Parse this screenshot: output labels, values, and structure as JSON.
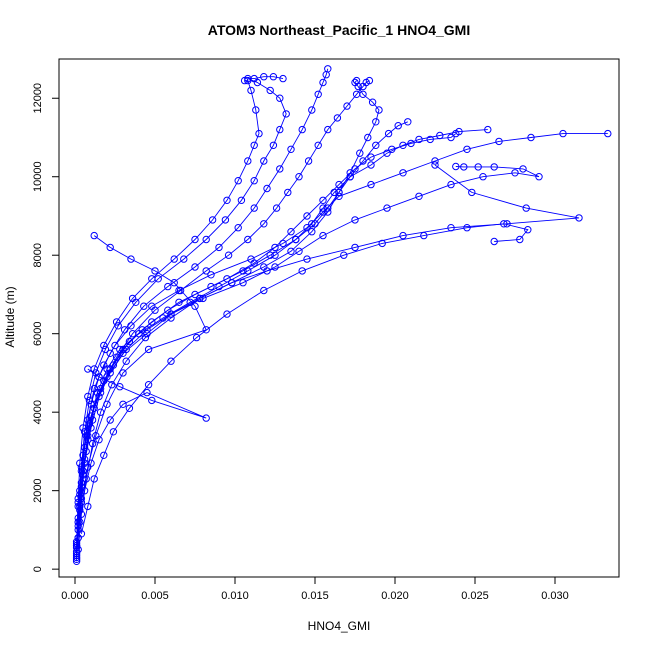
{
  "chart_data": {
    "type": "line",
    "title": "ATOM3 Northeast_Pacific_1 HNO4_GMI",
    "xlabel": "HNO4_GMI",
    "ylabel": "Altitude (m)",
    "xlim": [
      -0.001,
      0.034
    ],
    "ylim": [
      -200,
      13000
    ],
    "xticks": [
      "0.000",
      "0.005",
      "0.010",
      "0.015",
      "0.020",
      "0.025",
      "0.030"
    ],
    "xtick_values": [
      0,
      0.005,
      0.01,
      0.015,
      0.02,
      0.025,
      0.03
    ],
    "yticks": [
      "0",
      "2000",
      "4000",
      "6000",
      "8000",
      "10000",
      "12000"
    ],
    "ytick_values": [
      0,
      2000,
      4000,
      6000,
      8000,
      10000,
      12000
    ],
    "color": "#0000ff",
    "series": [
      {
        "x": [
          0.0001,
          0.0001,
          0.0002,
          0.0003,
          0.0005,
          0.0008,
          0.0012,
          0.0018,
          0.0025,
          0.0035,
          0.0048,
          0.0065,
          0.0085,
          0.011,
          0.013,
          0.0145,
          0.0155,
          0.0165,
          0.0185,
          0.0205,
          0.0225,
          0.0245,
          0.0265,
          0.0285,
          0.0305,
          0.0333
        ],
        "y": [
          200,
          600,
          1200,
          2000,
          2900,
          3800,
          4600,
          5200,
          5700,
          6200,
          6700,
          7100,
          7500,
          7900,
          8300,
          8700,
          9100,
          9500,
          9800,
          10100,
          10400,
          10700,
          10900,
          11000,
          11100,
          11100
        ]
      },
      {
        "x": [
          0.0001,
          0.0002,
          0.0003,
          0.0005,
          0.0008,
          0.0012,
          0.002,
          0.003,
          0.0045,
          0.006,
          0.008,
          0.0105,
          0.0125,
          0.014,
          0.0155,
          0.0175,
          0.0195,
          0.0215,
          0.0235,
          0.0255,
          0.0275,
          0.029,
          0.028,
          0.0262,
          0.0252,
          0.0243,
          0.0238
        ],
        "y": [
          250,
          800,
          1600,
          2500,
          3400,
          4200,
          4900,
          5500,
          6000,
          6500,
          6900,
          7300,
          7700,
          8100,
          8500,
          8900,
          9200,
          9500,
          9800,
          10000,
          10100,
          10000,
          10200,
          10250,
          10250,
          10250,
          10260
        ]
      },
      {
        "x": [
          0.0001,
          0.0002,
          0.0004,
          0.0006,
          0.001,
          0.0015,
          0.0022,
          0.0032,
          0.0045,
          0.006,
          0.0078,
          0.0098,
          0.012,
          0.0145,
          0.0175,
          0.0205,
          0.0235,
          0.027,
          0.0315,
          0.0282,
          0.0248,
          0.0225
        ],
        "y": [
          300,
          1000,
          1800,
          2700,
          3600,
          4400,
          5000,
          5600,
          6100,
          6500,
          6900,
          7300,
          7600,
          7900,
          8200,
          8500,
          8700,
          8800,
          8950,
          9200,
          9600,
          10300
        ]
      },
      {
        "x": [
          0.0001,
          0.0002,
          0.0003,
          0.0006,
          0.0009,
          0.0014,
          0.002,
          0.0028,
          0.004,
          0.0055,
          0.0072,
          0.009,
          0.0108,
          0.0125,
          0.0138,
          0.0148,
          0.0155,
          0.0162,
          0.0172,
          0.0185,
          0.0195,
          0.0205,
          0.0215,
          0.0228,
          0.024,
          0.0258
        ],
        "y": [
          350,
          1100,
          1900,
          2800,
          3700,
          4500,
          5100,
          5600,
          6000,
          6400,
          6800,
          7200,
          7600,
          8000,
          8400,
          8800,
          9200,
          9600,
          10000,
          10300,
          10600,
          10800,
          10950,
          11050,
          11150,
          11200
        ]
      },
      {
        "x": [
          0.0001,
          0.0002,
          0.0004,
          0.0007,
          0.0011,
          0.0016,
          0.0022,
          0.003,
          0.0042,
          0.0058,
          0.0075,
          0.0095,
          0.0112,
          0.0125,
          0.0135,
          0.0145,
          0.0155,
          0.0165,
          0.0175,
          0.0185,
          0.0198,
          0.021,
          0.0222,
          0.0235,
          0.0238
        ],
        "y": [
          400,
          1200,
          2100,
          3000,
          3800,
          4500,
          5100,
          5600,
          6100,
          6600,
          7000,
          7400,
          7800,
          8200,
          8600,
          9000,
          9400,
          9800,
          10200,
          10500,
          10700,
          10850,
          10950,
          11000,
          11100
        ]
      },
      {
        "x": [
          0.0001,
          0.0002,
          0.0004,
          0.0006,
          0.001,
          0.0016,
          0.0024,
          0.0034,
          0.0048,
          0.0065,
          0.0085,
          0.0105,
          0.0122,
          0.0138,
          0.015,
          0.0158,
          0.0165,
          0.0172,
          0.018,
          0.0188,
          0.0196,
          0.0202,
          0.0208
        ],
        "y": [
          450,
          1300,
          2200,
          3100,
          3900,
          4600,
          5200,
          5800,
          6300,
          6800,
          7200,
          7600,
          8000,
          8400,
          8800,
          9200,
          9600,
          10000,
          10400,
          10800,
          11100,
          11300,
          11400
        ]
      },
      {
        "x": [
          0.0002,
          0.0004,
          0.0007,
          0.0011,
          0.0016,
          0.0023,
          0.0032,
          0.0044,
          0.006,
          0.0078,
          0.0098,
          0.0118,
          0.0135,
          0.0148,
          0.0158,
          0.0165,
          0.0172,
          0.0178,
          0.0183,
          0.0188,
          0.019,
          0.0186,
          0.018,
          0.0177,
          0.0175,
          0.0176
        ],
        "y": [
          500,
          1400,
          2300,
          3200,
          4000,
          4700,
          5300,
          5900,
          6400,
          6900,
          7300,
          7700,
          8100,
          8600,
          9100,
          9600,
          10100,
          10600,
          11000,
          11400,
          11700,
          11900,
          12100,
          12300,
          12400,
          12450
        ]
      },
      {
        "x": [
          0.0001,
          0.0003,
          0.0005,
          0.0008,
          0.0012,
          0.0018,
          0.0026,
          0.0036,
          0.005,
          0.0066,
          0.0082,
          0.0096,
          0.0108,
          0.0118,
          0.0126,
          0.0133,
          0.014,
          0.0146,
          0.0152,
          0.0158,
          0.0164,
          0.017,
          0.0176,
          0.018,
          0.0182,
          0.0184
        ],
        "y": [
          550,
          1500,
          2400,
          3300,
          4100,
          4800,
          5400,
          6000,
          6600,
          7100,
          7600,
          8000,
          8400,
          8800,
          9200,
          9600,
          10000,
          10400,
          10800,
          11200,
          11500,
          11800,
          12100,
          12300,
          12400,
          12450
        ]
      },
      {
        "x": [
          0.0001,
          0.0002,
          0.0004,
          0.0007,
          0.001,
          0.0015,
          0.0022,
          0.0031,
          0.0043,
          0.0058,
          0.0075,
          0.009,
          0.0102,
          0.0112,
          0.012,
          0.0128,
          0.0135,
          0.0142,
          0.0148,
          0.0152,
          0.0155,
          0.0157,
          0.0158
        ],
        "y": [
          600,
          1600,
          2500,
          3400,
          4200,
          4900,
          5500,
          6100,
          6700,
          7200,
          7700,
          8200,
          8700,
          9200,
          9700,
          10200,
          10700,
          11200,
          11700,
          12100,
          12400,
          12600,
          12750
        ]
      },
      {
        "x": [
          0.0001,
          0.0002,
          0.0004,
          0.0006,
          0.0009,
          0.0013,
          0.0019,
          0.0027,
          0.0038,
          0.0052,
          0.0068,
          0.0082,
          0.0094,
          0.0104,
          0.0112,
          0.0118,
          0.0124,
          0.0128,
          0.0132,
          0.0128,
          0.0122,
          0.0114,
          0.0108,
          0.0112,
          0.0118,
          0.0124,
          0.013
        ],
        "y": [
          650,
          1700,
          2600,
          3500,
          4300,
          5000,
          5600,
          6200,
          6800,
          7400,
          7900,
          8400,
          8900,
          9400,
          9900,
          10400,
          10800,
          11200,
          11600,
          12000,
          12200,
          12400,
          12500,
          12500,
          12550,
          12550,
          12500
        ]
      },
      {
        "x": [
          0.0001,
          0.0002,
          0.0003,
          0.0005,
          0.0008,
          0.0012,
          0.0018,
          0.0026,
          0.0036,
          0.0048,
          0.0062,
          0.0075,
          0.0086,
          0.0095,
          0.0102,
          0.0108,
          0.0112,
          0.0115,
          0.0113,
          0.011,
          0.0108,
          0.0106
        ],
        "y": [
          700,
          1800,
          2700,
          3600,
          4400,
          5100,
          5700,
          6300,
          6900,
          7400,
          7900,
          8400,
          8900,
          9400,
          9900,
          10400,
          10800,
          11100,
          11700,
          12200,
          12450,
          12450
        ]
      },
      {
        "x": [
          0.0003,
          0.0006,
          0.001,
          0.0015,
          0.0022,
          0.003,
          0.0045,
          0.0082,
          0.0048,
          0.0028,
          0.0015,
          0.0008
        ],
        "y": [
          1200,
          2000,
          2700,
          3300,
          3800,
          4200,
          4500,
          3850,
          4300,
          4650,
          4900,
          5100
        ]
      },
      {
        "x": [
          0.0002,
          0.0004,
          0.0008,
          0.0013,
          0.002,
          0.003,
          0.0046,
          0.0082,
          0.0075,
          0.0062,
          0.005,
          0.0035,
          0.0022,
          0.0012
        ],
        "y": [
          800,
          1700,
          2600,
          3400,
          4200,
          5000,
          5600,
          6100,
          6700,
          7300,
          7600,
          7900,
          8200,
          8500
        ]
      },
      {
        "x": [
          0.0004,
          0.0008,
          0.0012,
          0.0018,
          0.0024,
          0.0034,
          0.0046,
          0.006,
          0.0076,
          0.0095,
          0.0118,
          0.0142,
          0.0168,
          0.0192,
          0.0218,
          0.0245,
          0.0268,
          0.0283,
          0.0278,
          0.0262
        ],
        "y": [
          900,
          1600,
          2300,
          2900,
          3500,
          4100,
          4700,
          5300,
          5900,
          6500,
          7100,
          7600,
          8000,
          8300,
          8500,
          8700,
          8800,
          8650,
          8400,
          8350
        ]
      }
    ]
  }
}
